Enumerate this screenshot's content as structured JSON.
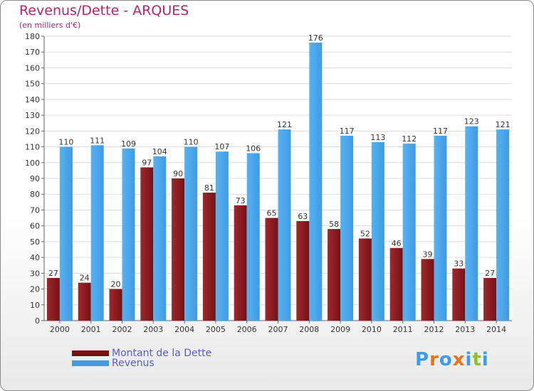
{
  "chart_data": {
    "type": "bar",
    "title": "Revenus/Dette - ARQUES",
    "subtitle": "(en milliers d'€)",
    "categories": [
      "2000",
      "2001",
      "2002",
      "2003",
      "2004",
      "2005",
      "2006",
      "2007",
      "2008",
      "2009",
      "2010",
      "2011",
      "2012",
      "2013",
      "2014"
    ],
    "series": [
      {
        "name": "Montant de la Dette",
        "color": "#7a1014",
        "values": [
          27,
          24,
          20,
          97,
          90,
          81,
          73,
          65,
          63,
          58,
          52,
          46,
          39,
          33,
          27
        ]
      },
      {
        "name": "Revenus",
        "color": "#3d9ce6",
        "values": [
          110,
          111,
          109,
          104,
          110,
          107,
          106,
          121,
          176,
          117,
          113,
          112,
          117,
          123,
          121
        ]
      }
    ],
    "ylim": [
      0,
      180
    ],
    "ytick_step": 10,
    "grid": true,
    "legend_position": "bottom-left"
  },
  "logo": {
    "text": "Proxiti",
    "colors": [
      "#3d9ce6",
      "#e8731a",
      "#3d9ce6",
      "#e8731a",
      "#3d9ce6",
      "#8fbf2f",
      "#3d9ce6"
    ]
  }
}
